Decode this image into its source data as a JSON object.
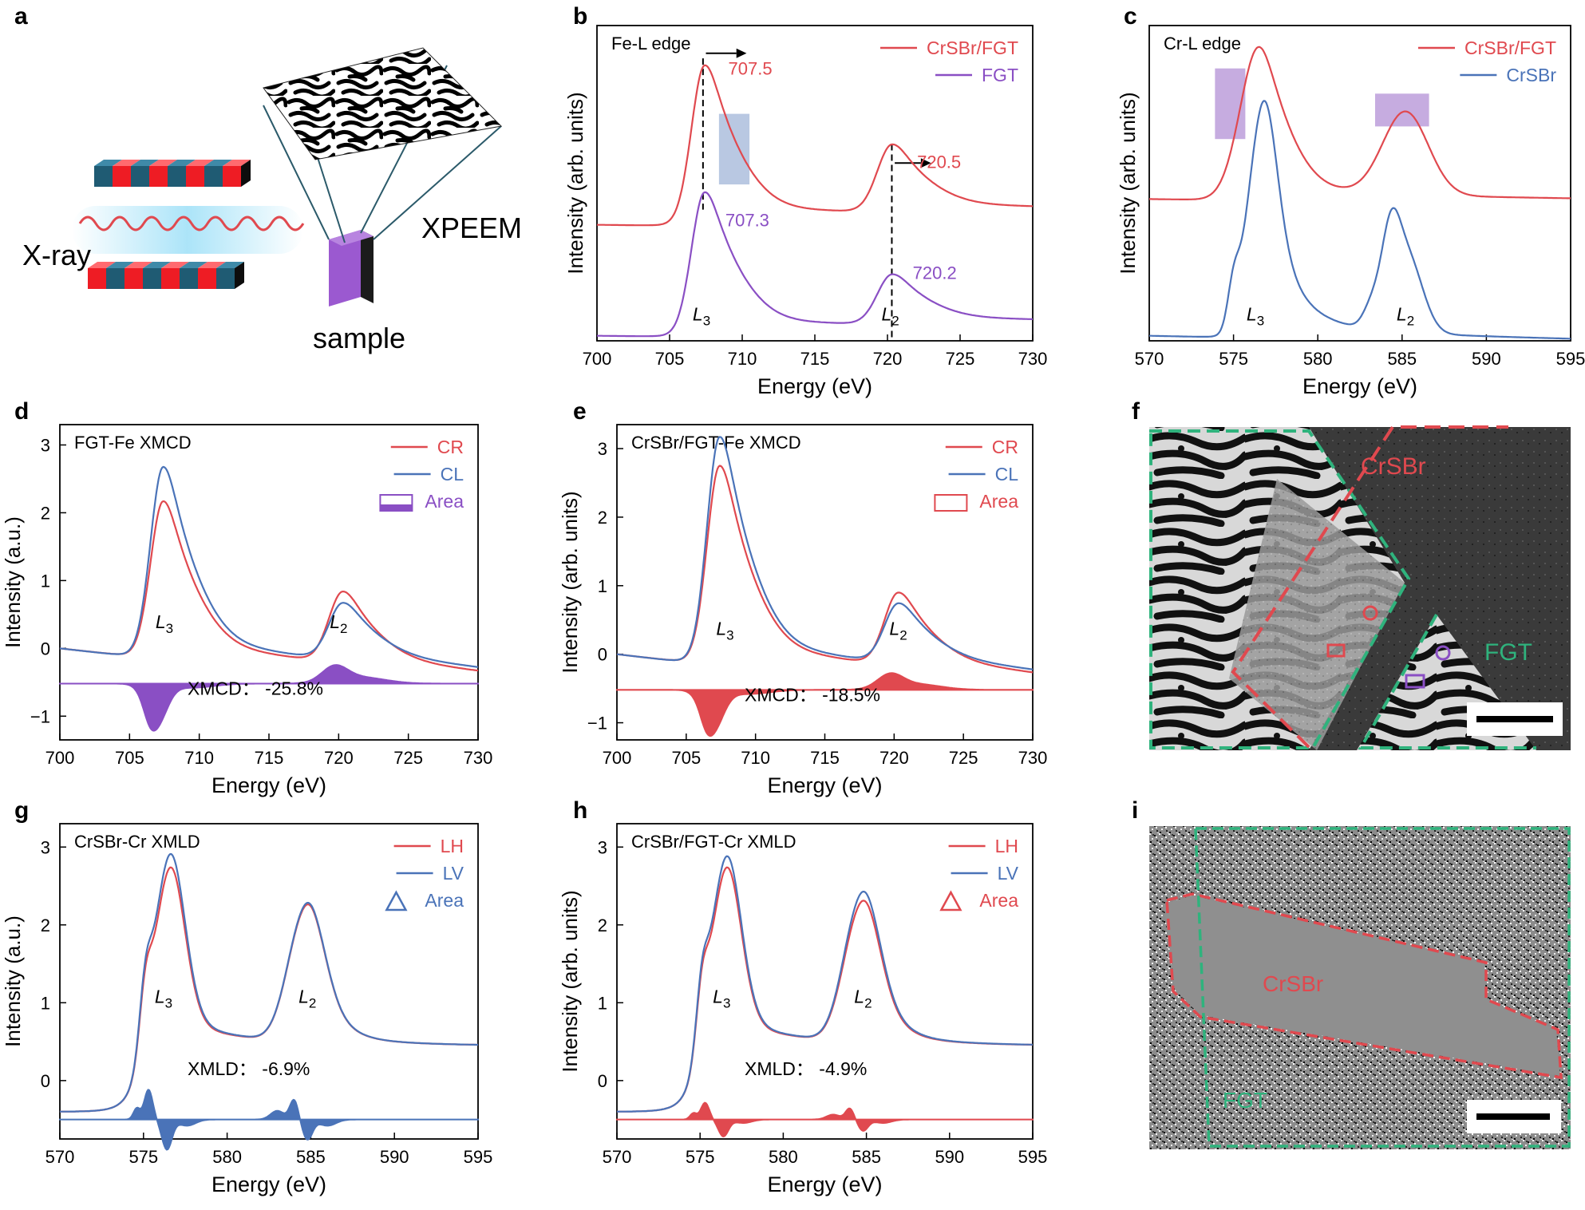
{
  "colors": {
    "red": "#e0494f",
    "purple": "#8a4fc4",
    "blue": "#4a73b8",
    "green": "#2fb37d",
    "black": "#000000"
  },
  "panel_labels": [
    "a",
    "b",
    "c",
    "d",
    "e",
    "f",
    "g",
    "h",
    "i"
  ],
  "panel_a": {
    "xray_label": "X-ray",
    "xpeem_label": "XPEEM",
    "sample_label": "sample"
  },
  "panel_f": {
    "crsbr_label": "CrSBr",
    "fgt_label": "FGT"
  },
  "panel_i": {
    "crsbr_label": "CrSBr",
    "fgt_label": "FGT"
  },
  "chart_data": [
    {
      "id": "b",
      "type": "line",
      "title": "Fe-L edge",
      "xlabel": "Energy (eV)",
      "ylabel": "Intensity (arb. units)",
      "xlim": [
        700,
        730
      ],
      "xticks": [
        700,
        705,
        710,
        715,
        720,
        725,
        730
      ],
      "ylim": [
        0,
        1.25
      ],
      "yticks": [],
      "series": [
        {
          "name": "CrSBr/FGT",
          "color": "#e0494f",
          "shape": "fe",
          "offset": 0.46,
          "amp": 0.6
        },
        {
          "name": "FGT",
          "color": "#8a4fc4",
          "shape": "fe",
          "offset": 0.02,
          "amp": 0.54
        }
      ],
      "annotations": [
        {
          "text": "707.5",
          "x": 707.5,
          "y": 1.08,
          "color": "#e0494f"
        },
        {
          "text": "707.3",
          "x": 707.3,
          "y": 0.48,
          "color": "#8a4fc4"
        },
        {
          "text": "720.5",
          "x": 720.5,
          "y": 0.71,
          "color": "#e0494f"
        },
        {
          "text": "720.2",
          "x": 720.2,
          "y": 0.27,
          "color": "#8a4fc4"
        }
      ],
      "edge_labels": [
        {
          "sym": "L",
          "sub": "3",
          "x": 707.2,
          "y": 0.08
        },
        {
          "sym": "L",
          "sub": "2",
          "x": 720.2,
          "y": 0.08
        }
      ]
    },
    {
      "id": "c",
      "type": "line",
      "title": "Cr-L edge",
      "xlabel": "Energy (eV)",
      "ylabel": "Intensity (arb. units)",
      "xlim": [
        570,
        595
      ],
      "xticks": [
        570,
        575,
        580,
        585,
        590,
        595
      ],
      "ylim": [
        0,
        1.25
      ],
      "yticks": [],
      "series": [
        {
          "name": "CrSBr/FGT",
          "color": "#e0494f",
          "shape": "crsmooth",
          "offset": 0.55,
          "amp": 0.6
        },
        {
          "name": "CrSBr",
          "color": "#4a73b8",
          "shape": "crsharp",
          "offset": 0.02,
          "amp": 0.72
        }
      ],
      "edge_labels": [
        {
          "sym": "L",
          "sub": "3",
          "x": 576.3,
          "y": 0.08
        },
        {
          "sym": "L",
          "sub": "2",
          "x": 585.2,
          "y": 0.08
        }
      ]
    },
    {
      "id": "d",
      "type": "line",
      "title": "FGT-Fe XMCD",
      "xlabel": "Energy (eV)",
      "ylabel": "Intensity (a.u.)",
      "xlim": [
        700,
        730
      ],
      "xticks": [
        700,
        705,
        710,
        715,
        720,
        725,
        730
      ],
      "ylim": [
        -1.35,
        3.3
      ],
      "yticks": [
        -1,
        0,
        1,
        2,
        3
      ],
      "series": [
        {
          "name": "CR",
          "color": "#e0494f",
          "shape": "fe",
          "amp": 2.2,
          "l2amp": 1.0
        },
        {
          "name": "CL",
          "color": "#4a73b8",
          "shape": "fe",
          "amp": 2.68,
          "l2amp": 0.78
        },
        {
          "name": "Area",
          "color": "#8a4fc4",
          "shape": "xmcd",
          "legend": "rect"
        }
      ],
      "xmcd": {
        "baseline": -0.52,
        "l3": -0.6,
        "l2": 0.27
      },
      "label": "XMCD： -25.8%",
      "edge_labels": [
        {
          "sym": "L",
          "sub": "3",
          "x": 707.5,
          "y": 0.3
        },
        {
          "sym": "L",
          "sub": "2",
          "x": 720.0,
          "y": 0.3
        }
      ]
    },
    {
      "id": "e",
      "type": "line",
      "title": "CrSBr/FGT-Fe XMCD",
      "xlabel": "Energy (eV)",
      "ylabel": "Intensity (arb. units)",
      "xlim": [
        700,
        730
      ],
      "xticks": [
        700,
        705,
        710,
        715,
        720,
        725,
        730
      ],
      "ylim": [
        -1.25,
        3.35
      ],
      "yticks": [
        -1,
        0,
        1,
        2,
        3
      ],
      "series": [
        {
          "name": "CR",
          "color": "#e0494f",
          "shape": "fe",
          "amp": 2.75,
          "l2amp": 1.0
        },
        {
          "name": "CL",
          "color": "#4a73b8",
          "shape": "fe",
          "amp": 3.15,
          "l2amp": 0.8
        },
        {
          "name": "Area",
          "color": "#e0494f",
          "shape": "xmcd",
          "legend": "rect"
        }
      ],
      "xmcd": {
        "baseline": -0.52,
        "l3": -0.58,
        "l2": 0.24
      },
      "label": "XMCD： -18.5%",
      "edge_labels": [
        {
          "sym": "L",
          "sub": "3",
          "x": 707.8,
          "y": 0.28
        },
        {
          "sym": "L",
          "sub": "2",
          "x": 720.3,
          "y": 0.28
        }
      ]
    },
    {
      "id": "g",
      "type": "line",
      "title": "CrSBr-Cr XMLD",
      "xlabel": "Energy (eV)",
      "ylabel": "Intensity (a.u.)",
      "xlim": [
        570,
        595
      ],
      "xticks": [
        570,
        575,
        580,
        585,
        590,
        595
      ],
      "ylim": [
        -0.75,
        3.3
      ],
      "yticks": [
        0,
        1,
        2,
        3
      ],
      "series": [
        {
          "name": "LH",
          "color": "#e0494f",
          "shape": "crx",
          "amp": 2.7,
          "l2amp": 1.9
        },
        {
          "name": "LV",
          "color": "#4a73b8",
          "shape": "crx",
          "amp": 2.88,
          "l2amp": 1.92
        },
        {
          "name": "Area",
          "color": "#4a73b8",
          "shape": "xmld",
          "legend": "triangle"
        }
      ],
      "xmld": {
        "baseline": -0.5,
        "scale": 0.32
      },
      "label": "XMLD： -6.9%",
      "edge_labels": [
        {
          "sym": "L",
          "sub": "3",
          "x": 576.2,
          "y": 1.0
        },
        {
          "sym": "L",
          "sub": "2",
          "x": 584.8,
          "y": 1.0
        }
      ]
    },
    {
      "id": "h",
      "type": "line",
      "title": "CrSBr/FGT-Cr XMLD",
      "xlabel": "Energy (eV)",
      "ylabel": "Intensity (arb. units)",
      "xlim": [
        570,
        595
      ],
      "xticks": [
        570,
        575,
        580,
        585,
        590,
        595
      ],
      "ylim": [
        -0.75,
        3.3
      ],
      "yticks": [
        0,
        1,
        2,
        3
      ],
      "series": [
        {
          "name": "LH",
          "color": "#e0494f",
          "shape": "crx",
          "amp": 2.7,
          "l2amp": 1.95
        },
        {
          "name": "LV",
          "color": "#4a73b8",
          "shape": "crx",
          "amp": 2.85,
          "l2amp": 2.07
        },
        {
          "name": "Area",
          "color": "#e0494f",
          "shape": "xmld",
          "legend": "triangle"
        }
      ],
      "xmld": {
        "baseline": -0.5,
        "scale": 0.18
      },
      "label": "XMLD： -4.9%",
      "edge_labels": [
        {
          "sym": "L",
          "sub": "3",
          "x": 576.3,
          "y": 1.0
        },
        {
          "sym": "L",
          "sub": "2",
          "x": 584.8,
          "y": 1.0
        }
      ]
    }
  ]
}
